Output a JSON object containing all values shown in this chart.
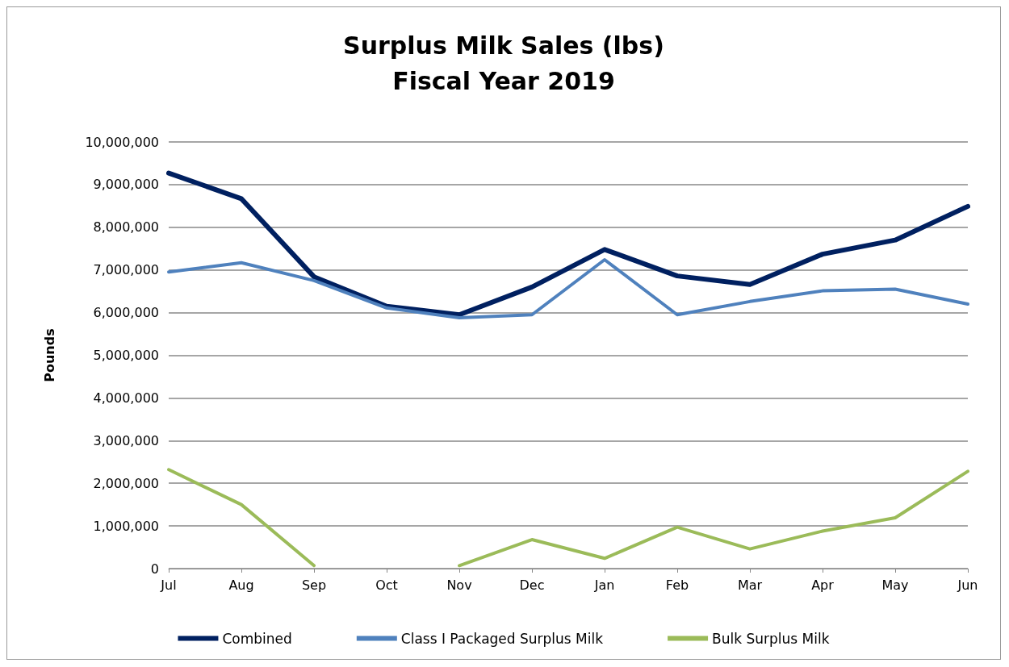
{
  "chart_data": {
    "type": "line",
    "title": "Surplus Milk Sales (lbs)\nFiscal Year 2019",
    "ylabel": "Pounds",
    "categories": [
      "Jul",
      "Aug",
      "Sep",
      "Oct",
      "Nov",
      "Dec",
      "Jan",
      "Feb",
      "Mar",
      "Apr",
      "May",
      "Jun"
    ],
    "series": [
      {
        "name": "Combined",
        "color": "#002060",
        "values": [
          9270000,
          8670000,
          6840000,
          6150000,
          5950000,
          6600000,
          7480000,
          6860000,
          6660000,
          7370000,
          7700000,
          8490000
        ]
      },
      {
        "name": "Class I Packaged Surplus Milk",
        "color": "#4f81bd",
        "values": [
          6950000,
          7170000,
          6750000,
          6110000,
          5880000,
          5950000,
          7240000,
          5950000,
          6260000,
          6510000,
          6550000,
          6200000
        ]
      },
      {
        "name": "Bulk Surplus Milk",
        "color": "#9bbb59",
        "values": [
          2320000,
          1500000,
          70000,
          null,
          70000,
          680000,
          240000,
          970000,
          460000,
          880000,
          1190000,
          2280000
        ]
      }
    ],
    "ylim": [
      0,
      10000000
    ],
    "yticks": [
      0,
      {
        "value": 1000000,
        "label": "1,000,000"
      },
      {
        "value": 2000000,
        "label": "2,000,000"
      },
      {
        "value": 3000000,
        "label": "3,000,000"
      },
      {
        "value": 4000000,
        "label": "4,000,000"
      },
      {
        "value": 5000000,
        "label": "5,000,000"
      },
      {
        "value": 6000000,
        "label": "6,000,000"
      },
      {
        "value": 7000000,
        "label": "7,000,000"
      },
      {
        "value": 8000000,
        "label": "8,000,000"
      },
      {
        "value": 9000000,
        "label": "9,000,000"
      },
      {
        "value": 10000000,
        "label": "10,000,000"
      }
    ],
    "grid": "y",
    "legend": "bottom",
    "marker": "none",
    "line_style": "solid"
  }
}
